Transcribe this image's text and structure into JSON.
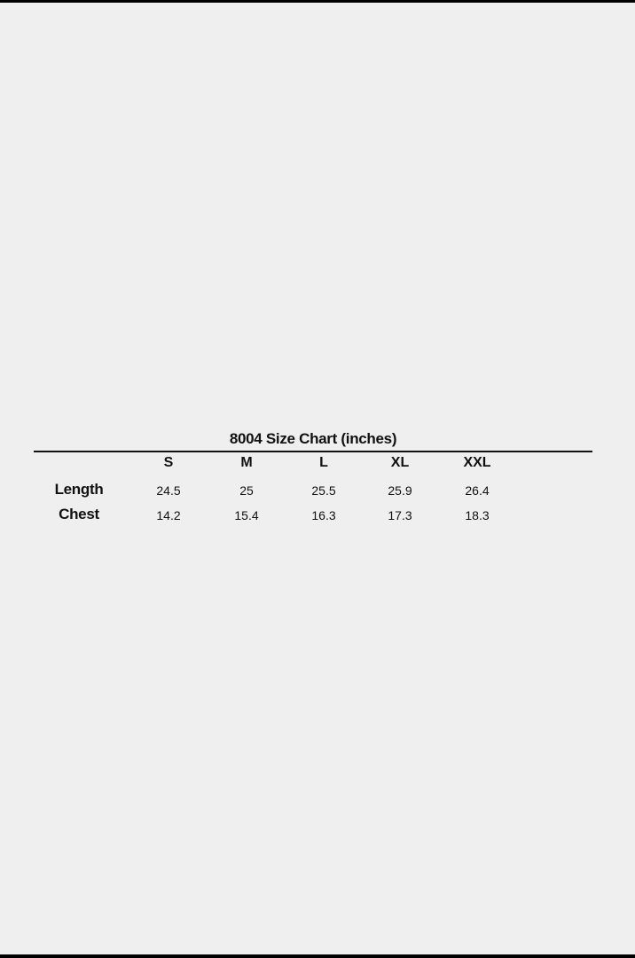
{
  "title": "8004 Size Chart (inches)",
  "sizes": [
    "S",
    "M",
    "L",
    "XL",
    "XXL"
  ],
  "rows": [
    {
      "label": "Length",
      "values": [
        "24.5",
        "25",
        "25.5",
        "25.9",
        "26.4"
      ]
    },
    {
      "label": "Chest",
      "values": [
        "14.2",
        "15.4",
        "16.3",
        "17.3",
        "18.3"
      ]
    }
  ]
}
